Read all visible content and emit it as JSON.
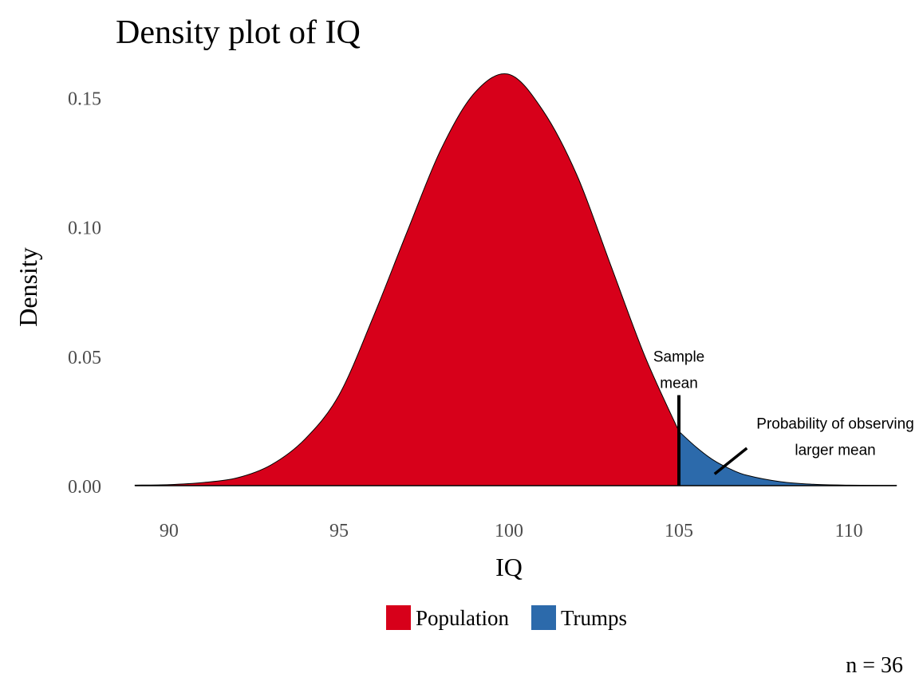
{
  "chart_data": {
    "type": "area",
    "title": "Density plot of IQ",
    "xlabel": "IQ",
    "ylabel": "Density",
    "xlim": [
      88.5,
      111.5
    ],
    "ylim": [
      0,
      0.16
    ],
    "x_ticks": [
      90,
      95,
      100,
      105,
      110
    ],
    "y_ticks": [
      0.0,
      0.05,
      0.1,
      0.15
    ],
    "y_tick_labels": [
      "0.00",
      "0.05",
      "0.10",
      "0.15"
    ],
    "grid": false,
    "legend_position": "bottom",
    "series": [
      {
        "name": "Population",
        "color": "#d7001a",
        "x": [
          89,
          90,
          91,
          92,
          93,
          94,
          95,
          96,
          97,
          98,
          99,
          100,
          101,
          102,
          103,
          104,
          105
        ],
        "y": [
          0.0002,
          0.0004,
          0.0012,
          0.003,
          0.008,
          0.018,
          0.035,
          0.065,
          0.098,
          0.13,
          0.152,
          0.159,
          0.145,
          0.12,
          0.085,
          0.05,
          0.021
        ]
      },
      {
        "name": "Trumps",
        "color": "#2c6aab",
        "x": [
          105,
          105.5,
          106,
          106.5,
          107,
          108,
          109,
          110,
          111,
          111.4
        ],
        "y": [
          0.021,
          0.015,
          0.01,
          0.0065,
          0.004,
          0.0015,
          0.0005,
          0.0002,
          0.0001,
          0.0001
        ]
      }
    ],
    "sample_mean": 105,
    "annotations": [
      {
        "name": "sample-mean",
        "lines": [
          "Sample",
          "mean"
        ],
        "x": 105,
        "y": 0.048
      },
      {
        "name": "probability",
        "lines": [
          "Probability of observing",
          "larger mean"
        ],
        "x": 109.6,
        "y": 0.022
      }
    ],
    "caption": "n = 36"
  }
}
